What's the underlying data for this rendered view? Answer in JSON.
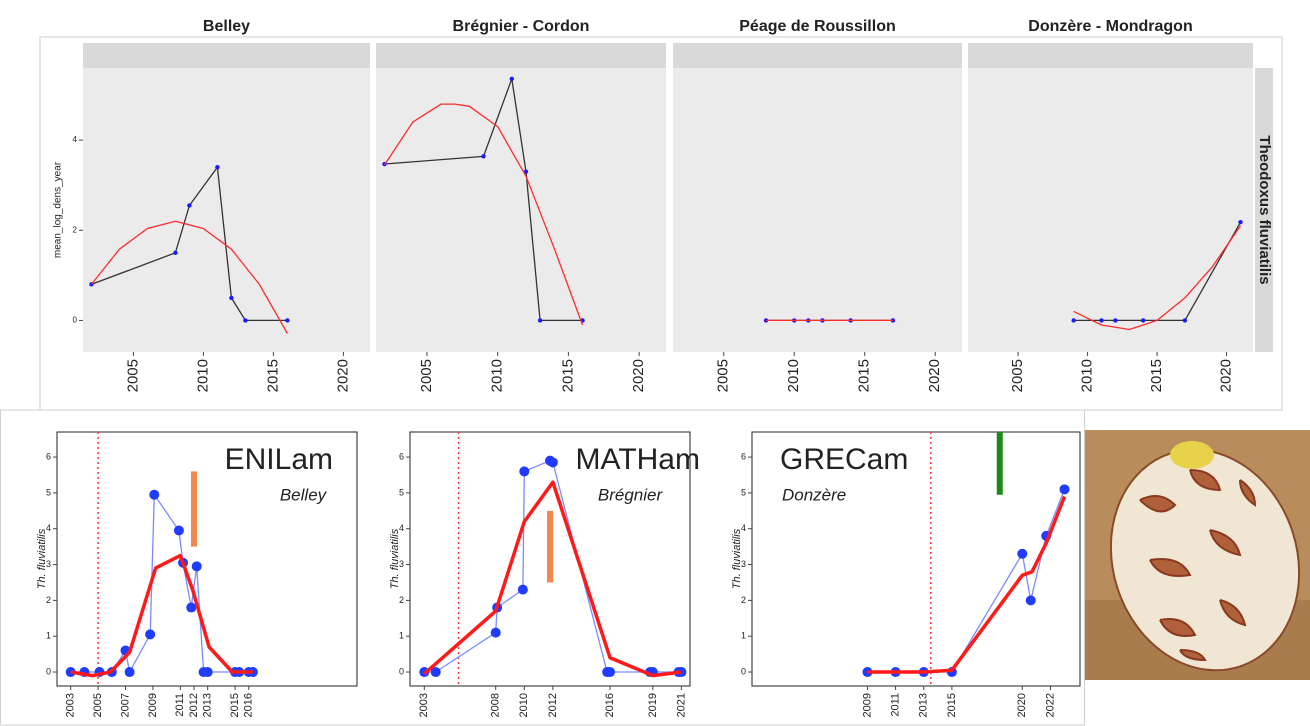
{
  "chart_data": [
    {
      "type": "line",
      "title": "Belley",
      "ylabel": "mean_log_dens_year",
      "xlim": [
        2001.4,
        2021.9
      ],
      "ylim": [
        -0.7,
        5.6
      ],
      "xticks": [
        2005,
        2010,
        2015,
        2020
      ],
      "yticks": [
        0,
        2,
        4
      ],
      "series": [
        {
          "color": "#333333",
          "marker": "#1a1aff",
          "x": [
            2002,
            2008,
            2009,
            2011,
            2012,
            2013,
            2016
          ],
          "values": [
            0.8,
            1.5,
            2.55,
            3.4,
            0.5,
            0,
            0
          ]
        },
        {
          "color": "#ff2a2a",
          "x": [
            2002,
            2004,
            2006,
            2008,
            2010,
            2012,
            2014,
            2016
          ],
          "values": [
            0.8,
            1.58,
            2.04,
            2.2,
            2.04,
            1.58,
            0.8,
            -0.29
          ]
        }
      ]
    },
    {
      "type": "line",
      "title": "Brégnier - Cordon",
      "xlim": [
        2001.4,
        2021.9
      ],
      "ylim": [
        -0.7,
        5.6
      ],
      "xticks": [
        2005,
        2010,
        2015,
        2020
      ],
      "series": [
        {
          "color": "#333333",
          "marker": "#1a1aff",
          "x": [
            2002,
            2009,
            2011,
            2012,
            2013,
            2016
          ],
          "values": [
            3.47,
            3.64,
            5.36,
            3.3,
            0,
            0
          ]
        },
        {
          "color": "#ff2a2a",
          "x": [
            2002,
            2004,
            2006,
            2007,
            2008,
            2010,
            2012,
            2014,
            2016
          ],
          "values": [
            3.45,
            4.4,
            4.8,
            4.8,
            4.75,
            4.3,
            3.2,
            1.6,
            -0.1
          ]
        }
      ]
    },
    {
      "type": "line",
      "title": "Péage de Roussillon",
      "xlim": [
        2001.4,
        2021.9
      ],
      "ylim": [
        -0.7,
        5.6
      ],
      "xticks": [
        2005,
        2010,
        2015,
        2020
      ],
      "series": [
        {
          "color": "#333333",
          "marker": "#1a1aff",
          "x": [
            2008,
            2010,
            2011,
            2012,
            2014,
            2017
          ],
          "values": [
            0,
            0,
            0,
            0,
            0,
            0
          ]
        },
        {
          "color": "#ff2a2a",
          "x": [
            2008,
            2017
          ],
          "values": [
            0,
            0
          ]
        }
      ]
    },
    {
      "type": "line",
      "title": "Donzère - Mondragon",
      "strip_label": "Theodoxus fluviatilis",
      "xlim": [
        2001.4,
        2021.9
      ],
      "ylim": [
        -0.7,
        5.6
      ],
      "xticks": [
        2005,
        2010,
        2015,
        2020
      ],
      "series": [
        {
          "color": "#333333",
          "marker": "#1a1aff",
          "x": [
            2009,
            2011,
            2012,
            2014,
            2017,
            2021
          ],
          "values": [
            0,
            0,
            0,
            0,
            0,
            2.18
          ]
        },
        {
          "color": "#ff2a2a",
          "x": [
            2009,
            2011,
            2013,
            2015,
            2017,
            2019,
            2021
          ],
          "values": [
            0.2,
            -0.1,
            -0.2,
            0,
            0.5,
            1.2,
            2.1
          ]
        }
      ]
    },
    {
      "type": "line",
      "title": "ENILam",
      "subtitle": "Belley",
      "ylabel": "Th. fluviatilis",
      "xlim": [
        2002.0,
        2023.9
      ],
      "ylim": [
        -0.39,
        6.7
      ],
      "xticks": [
        2003,
        2005,
        2007,
        2009,
        2011,
        2012,
        2013,
        2015,
        2016
      ],
      "yticks": [
        0,
        1,
        2,
        3,
        4,
        5,
        6
      ],
      "vline": 2005,
      "bar": {
        "x": 2012,
        "ymin": 3.5,
        "ymax": 5.6,
        "color": "#f4874b"
      },
      "series": [
        {
          "color": "#7b8cff",
          "marker": "#1f3cff",
          "x": [
            2003,
            2004,
            2005.1,
            2006,
            2007,
            2007.3,
            2008.8,
            2009.1,
            2010.9,
            2011.2,
            2011.8,
            2012.2,
            2012.7,
            2013,
            2015,
            2015.3,
            2016,
            2016.3
          ],
          "values": [
            0,
            0,
            0,
            0,
            0.6,
            0,
            1.05,
            4.95,
            3.95,
            3.05,
            1.8,
            2.95,
            0,
            0,
            0,
            0,
            0,
            0
          ]
        },
        {
          "color": "#ff1a1a",
          "width": 3.5,
          "x": [
            2003,
            2004.6,
            2005.9,
            2007.3,
            2009.2,
            2011,
            2011.9,
            2013.1,
            2014.8,
            2016.3
          ],
          "values": [
            0,
            -0.1,
            0,
            0.55,
            2.9,
            3.25,
            2.3,
            0.7,
            0,
            0
          ]
        }
      ]
    },
    {
      "type": "line",
      "title": "MATHam",
      "subtitle": "Brégnier",
      "ylabel": "Th. fluviatilis",
      "xlim": [
        2002.0,
        2021.6
      ],
      "ylim": [
        -0.39,
        6.7
      ],
      "xticks": [
        2003,
        2008,
        2010,
        2012,
        2016,
        2019,
        2021
      ],
      "yticks": [
        0,
        1,
        2,
        3,
        4,
        5,
        6
      ],
      "vline": 2005.4,
      "bar": {
        "x": 2011.8,
        "ymin": 2.5,
        "ymax": 4.5,
        "color": "#f4874b"
      },
      "series": [
        {
          "color": "#7b8cff",
          "marker": "#1f3cff",
          "x": [
            2003,
            2003.8,
            2008,
            2008.1,
            2009.9,
            2010,
            2011.8,
            2012,
            2015.8,
            2016,
            2018.8,
            2019,
            2020.8,
            2021
          ],
          "values": [
            0,
            0,
            1.1,
            1.8,
            2.3,
            5.6,
            5.9,
            5.85,
            0,
            0,
            0,
            0,
            0,
            0
          ]
        },
        {
          "color": "#ff1a1a",
          "width": 3.5,
          "x": [
            2003,
            2008,
            2010,
            2012,
            2016,
            2019,
            2021
          ],
          "values": [
            -0.05,
            1.7,
            4.2,
            5.3,
            0.4,
            -0.1,
            0
          ]
        }
      ]
    },
    {
      "type": "line",
      "title": "GRECam",
      "subtitle": "Donzère",
      "ylabel": "Th. fluviatilis",
      "xlim": [
        2000.8,
        2024.1
      ],
      "ylim": [
        -0.39,
        6.7
      ],
      "xticks": [
        2009,
        2011,
        2013,
        2015,
        2020,
        2022
      ],
      "yticks": [
        0,
        1,
        2,
        3,
        4,
        5,
        6
      ],
      "vline": 2013.5,
      "bar": {
        "x": 2018.4,
        "ymin": 4.95,
        "ymax": 6.7,
        "color": "#1a8a1a"
      },
      "series": [
        {
          "color": "#7b8cff",
          "marker": "#1f3cff",
          "x": [
            2009,
            2011,
            2013,
            2015,
            2020,
            2020.6,
            2021.7,
            2023
          ],
          "values": [
            0,
            0,
            0,
            0,
            3.3,
            2.0,
            3.8,
            5.1
          ]
        },
        {
          "color": "#ff1a1a",
          "width": 3.5,
          "x": [
            2009,
            2013,
            2015,
            2020,
            2020.7,
            2021.7,
            2023
          ],
          "values": [
            0,
            0,
            0.05,
            2.7,
            2.8,
            3.6,
            4.9
          ]
        }
      ]
    }
  ]
}
